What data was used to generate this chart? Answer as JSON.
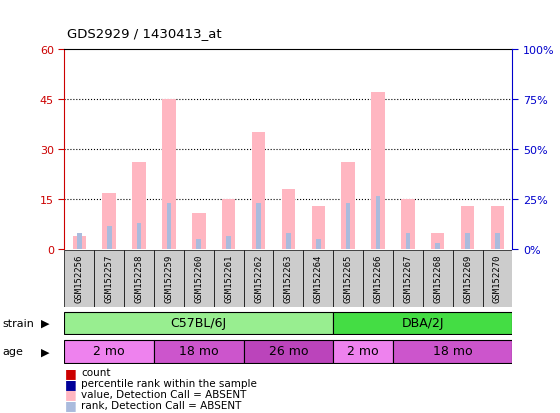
{
  "title": "GDS2929 / 1430413_at",
  "samples": [
    "GSM152256",
    "GSM152257",
    "GSM152258",
    "GSM152259",
    "GSM152260",
    "GSM152261",
    "GSM152262",
    "GSM152263",
    "GSM152264",
    "GSM152265",
    "GSM152266",
    "GSM152267",
    "GSM152268",
    "GSM152269",
    "GSM152270"
  ],
  "absent_value": [
    4,
    17,
    26,
    45,
    11,
    15,
    35,
    18,
    13,
    26,
    47,
    15,
    5,
    13,
    13
  ],
  "absent_rank": [
    5,
    7,
    8,
    14,
    3,
    4,
    14,
    5,
    3,
    14,
    16,
    5,
    2,
    5,
    5
  ],
  "ylim": [
    0,
    60
  ],
  "y2lim": [
    0,
    100
  ],
  "yticks": [
    0,
    15,
    30,
    45,
    60
  ],
  "y2ticks": [
    0,
    25,
    50,
    75,
    100
  ],
  "strain_groups": [
    {
      "label": "C57BL/6J",
      "start": 0,
      "end": 8,
      "color": "#98EE90"
    },
    {
      "label": "DBA/2J",
      "start": 9,
      "end": 14,
      "color": "#44DD44"
    }
  ],
  "age_groups": [
    {
      "label": "2 mo",
      "start": 0,
      "end": 2,
      "color": "#EE82EE"
    },
    {
      "label": "18 mo",
      "start": 3,
      "end": 5,
      "color": "#CC55CC"
    },
    {
      "label": "26 mo",
      "start": 6,
      "end": 8,
      "color": "#BB44BB"
    },
    {
      "label": "2 mo",
      "start": 9,
      "end": 10,
      "color": "#EE82EE"
    },
    {
      "label": "18 mo",
      "start": 11,
      "end": 14,
      "color": "#CC55CC"
    }
  ],
  "absent_value_color": "#FFB6C1",
  "absent_rank_color": "#AABBDD",
  "tick_color_left": "#cc0000",
  "tick_color_right": "#0000cc",
  "bg_color": "#ffffff",
  "legend_items": [
    {
      "label": "count",
      "color": "#cc0000"
    },
    {
      "label": "percentile rank within the sample",
      "color": "#000099"
    },
    {
      "label": "value, Detection Call = ABSENT",
      "color": "#FFB6C1"
    },
    {
      "label": "rank, Detection Call = ABSENT",
      "color": "#AABBDD"
    }
  ]
}
